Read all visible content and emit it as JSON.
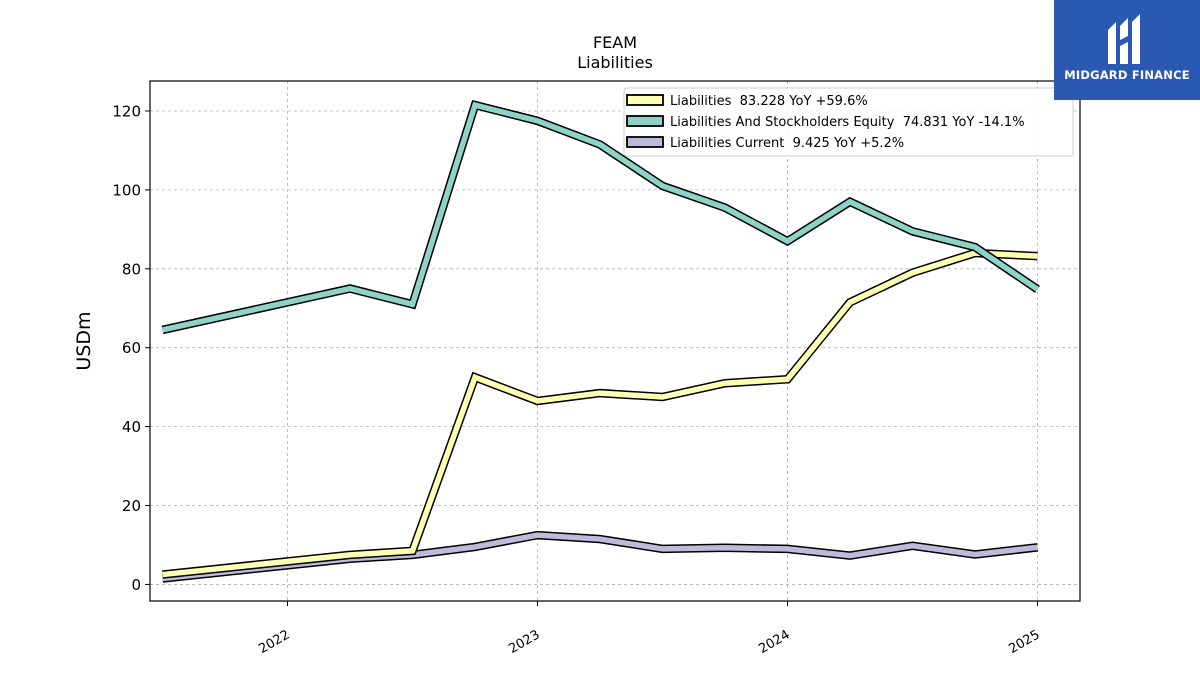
{
  "chart_data": {
    "type": "line",
    "title": "FEAM",
    "subtitle": "Liabilities",
    "ylabel": "USDm",
    "xlabel": "",
    "ylim": [
      -4.2,
      127.6
    ],
    "xlim": [
      2021.45,
      2025.17
    ],
    "yticks": [
      0,
      20,
      40,
      60,
      80,
      100,
      120
    ],
    "xticks": [
      2022,
      2023,
      2024,
      2025
    ],
    "grid": true,
    "legend_position": "top-right",
    "series": [
      {
        "name": "Liabilities  83.228 YoY +59.6%",
        "color": "#ffffb3",
        "x": [
          2021.5,
          2022.25,
          2022.5,
          2022.75,
          2023.0,
          2023.25,
          2023.5,
          2023.75,
          2024.0,
          2024.25,
          2024.5,
          2024.75,
          2025.0
        ],
        "values": [
          2.5,
          7.5,
          8.5,
          52.5,
          46.5,
          48.5,
          47.5,
          51.0,
          52.0,
          71.5,
          79.0,
          84.0,
          83.2
        ]
      },
      {
        "name": "Liabilities And Stockholders Equity  74.831 YoY -14.1%",
        "color": "#8dd3c7",
        "x": [
          2021.5,
          2022.25,
          2022.5,
          2022.75,
          2023.0,
          2023.25,
          2023.5,
          2023.75,
          2024.0,
          2024.25,
          2024.5,
          2024.75,
          2025.0
        ],
        "values": [
          64.5,
          75.0,
          71.0,
          121.5,
          117.5,
          111.5,
          101.0,
          95.5,
          87.0,
          97.0,
          89.5,
          85.5,
          74.8
        ]
      },
      {
        "name": "Liabilities Current  9.425 YoY +5.2%",
        "color": "#bebada",
        "x": [
          2021.5,
          2022.25,
          2022.5,
          2022.75,
          2023.0,
          2023.25,
          2023.5,
          2023.75,
          2024.0,
          2024.25,
          2024.5,
          2024.75,
          2025.0
        ],
        "values": [
          1.5,
          6.5,
          7.5,
          9.5,
          12.5,
          11.5,
          9.0,
          9.3,
          9.0,
          7.3,
          9.8,
          7.6,
          9.4
        ]
      }
    ]
  },
  "logo": {
    "text": "MIDGARD FINANCE",
    "color": "#2b58b0"
  }
}
